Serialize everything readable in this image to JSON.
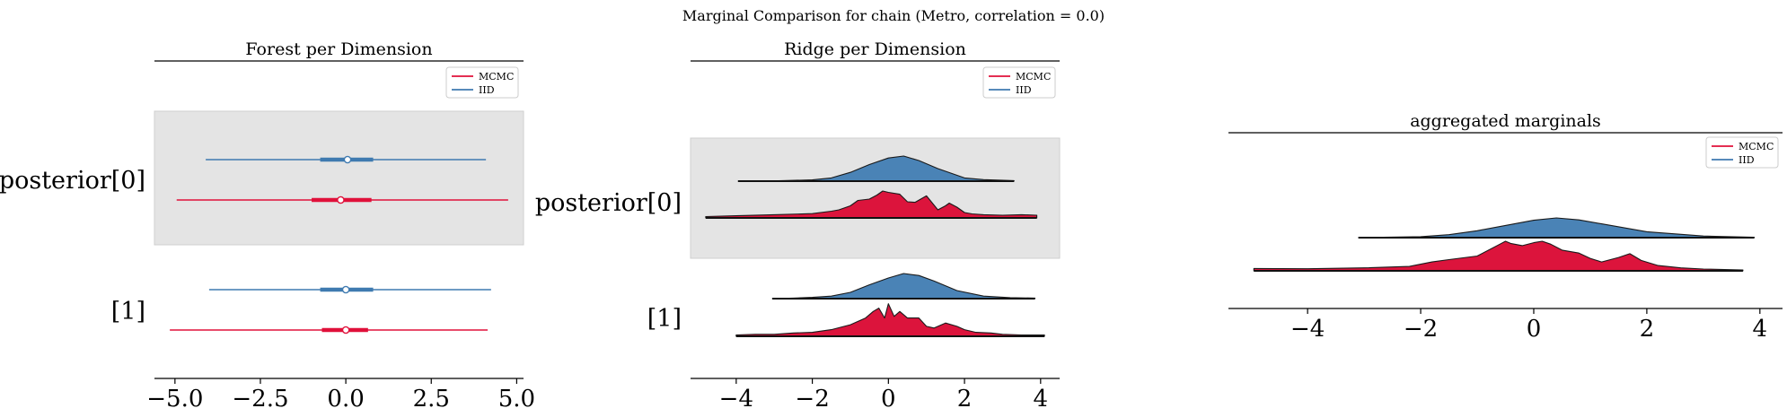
{
  "suptitle": "Marginal Comparison for chain (Metro, correlation = 0.0)",
  "colors": {
    "mcmc": "#e0103a",
    "iid": "#3f7ab0",
    "iid_fill": "#4a83b6",
    "mcmc_fill": "#dc143c",
    "highlight": "#e4e4e4"
  },
  "chart_data": [
    {
      "type": "forest",
      "title": "Forest per Dimension",
      "legend": [
        "MCMC",
        "IID"
      ],
      "legend_position": "top-right",
      "xticks": [
        "−5.0",
        "−2.5",
        "0.0",
        "2.5",
        "5.0"
      ],
      "xtick_values": [
        -5,
        -2.5,
        0,
        2.5,
        5
      ],
      "xlim": [
        -5.6,
        5.2
      ],
      "rows": [
        {
          "label": "posterior[0]",
          "highlighted": true,
          "iid": {
            "min": -4.1,
            "max": 4.1,
            "q1": -0.75,
            "q3": 0.8,
            "median": 0.05
          },
          "mcmc": {
            "min": -4.95,
            "max": 4.75,
            "q1": -1.0,
            "q3": 0.75,
            "median": -0.15
          }
        },
        {
          "label": "[1]",
          "highlighted": false,
          "iid": {
            "min": -4.0,
            "max": 4.25,
            "q1": -0.75,
            "q3": 0.8,
            "median": 0.0
          },
          "mcmc": {
            "min": -5.15,
            "max": 4.15,
            "q1": -0.7,
            "q3": 0.65,
            "median": 0.0
          }
        }
      ]
    },
    {
      "type": "ridge",
      "title": "Ridge per Dimension",
      "legend": [
        "MCMC",
        "IID"
      ],
      "legend_position": "top-right",
      "xticks": [
        "−4",
        "−2",
        "0",
        "2",
        "4"
      ],
      "xtick_values": [
        -4,
        -2,
        0,
        2,
        4
      ],
      "xlim": [
        -5.2,
        4.5
      ],
      "rows": [
        {
          "label": "posterior[0]",
          "highlighted": true,
          "iid": {
            "x": [
              -3.95,
              -3.0,
              -2.0,
              -1.5,
              -1.0,
              -0.5,
              0.0,
              0.4,
              0.8,
              1.3,
              2.0,
              2.5,
              3.3
            ],
            "y": [
              0.0,
              0.01,
              0.05,
              0.13,
              0.35,
              0.66,
              0.92,
              1.0,
              0.82,
              0.5,
              0.13,
              0.06,
              0.02
            ]
          },
          "mcmc": {
            "x": [
              -4.8,
              -4.0,
              -3.0,
              -2.0,
              -1.5,
              -1.3,
              -1.0,
              -0.8,
              -0.5,
              -0.3,
              -0.15,
              0.0,
              0.3,
              0.5,
              0.7,
              1.0,
              1.3,
              1.5,
              1.6,
              1.8,
              2.0,
              2.2,
              2.5,
              3.0,
              3.5,
              3.9
            ],
            "y": [
              0.05,
              0.08,
              0.12,
              0.16,
              0.25,
              0.3,
              0.45,
              0.65,
              0.7,
              0.85,
              1.0,
              0.95,
              0.88,
              0.6,
              0.58,
              0.82,
              0.3,
              0.45,
              0.55,
              0.4,
              0.2,
              0.15,
              0.12,
              0.1,
              0.12,
              0.1
            ]
          }
        },
        {
          "label": "[1]",
          "highlighted": false,
          "iid": {
            "x": [
              -3.05,
              -2.5,
              -2.0,
              -1.5,
              -1.0,
              -0.5,
              0.0,
              0.4,
              0.8,
              1.2,
              1.8,
              2.5,
              3.2,
              3.85
            ],
            "y": [
              0.0,
              0.02,
              0.05,
              0.1,
              0.25,
              0.55,
              0.82,
              1.0,
              0.92,
              0.7,
              0.32,
              0.1,
              0.04,
              0.02
            ]
          },
          "mcmc": {
            "x": [
              -4.0,
              -3.5,
              -3.0,
              -2.5,
              -2.0,
              -1.5,
              -1.0,
              -0.6,
              -0.4,
              -0.25,
              -0.1,
              0.0,
              0.15,
              0.3,
              0.5,
              0.8,
              1.0,
              1.2,
              1.5,
              1.8,
              2.0,
              2.3,
              2.7,
              3.0,
              3.5,
              4.1
            ],
            "y": [
              0.04,
              0.06,
              0.06,
              0.1,
              0.12,
              0.2,
              0.35,
              0.55,
              0.75,
              0.85,
              0.55,
              0.98,
              0.6,
              0.75,
              0.55,
              0.55,
              0.3,
              0.25,
              0.4,
              0.3,
              0.2,
              0.12,
              0.1,
              0.06,
              0.04,
              0.04
            ]
          }
        }
      ]
    },
    {
      "type": "ridge",
      "title": "aggregated marginals",
      "legend": [
        "MCMC",
        "IID"
      ],
      "legend_position": "top-right",
      "xticks": [
        "−4",
        "−2",
        "0",
        "2",
        "4"
      ],
      "xtick_values": [
        -4,
        -2,
        0,
        2,
        4
      ],
      "xlim": [
        -5.4,
        4.4
      ],
      "rows": [
        {
          "label": "",
          "highlighted": false,
          "iid": {
            "x": [
              -3.1,
              -2.0,
              -1.5,
              -1.0,
              -0.5,
              0.0,
              0.4,
              0.8,
              1.2,
              2.0,
              3.0,
              3.9
            ],
            "y": [
              0.0,
              0.05,
              0.15,
              0.35,
              0.62,
              0.88,
              1.0,
              0.9,
              0.7,
              0.3,
              0.08,
              0.02
            ]
          },
          "mcmc": {
            "x": [
              -4.95,
              -4.0,
              -3.0,
              -2.2,
              -1.8,
              -1.5,
              -1.0,
              -0.6,
              -0.5,
              -0.4,
              -0.2,
              0.0,
              0.15,
              0.3,
              0.5,
              0.8,
              1.0,
              1.2,
              1.5,
              1.7,
              1.9,
              2.2,
              2.6,
              3.0,
              3.7
            ],
            "y": [
              0.08,
              0.07,
              0.1,
              0.15,
              0.3,
              0.38,
              0.5,
              0.9,
              1.0,
              0.92,
              0.85,
              0.95,
              1.0,
              0.9,
              0.7,
              0.6,
              0.42,
              0.3,
              0.45,
              0.58,
              0.35,
              0.18,
              0.1,
              0.06,
              0.03
            ]
          }
        }
      ]
    }
  ]
}
